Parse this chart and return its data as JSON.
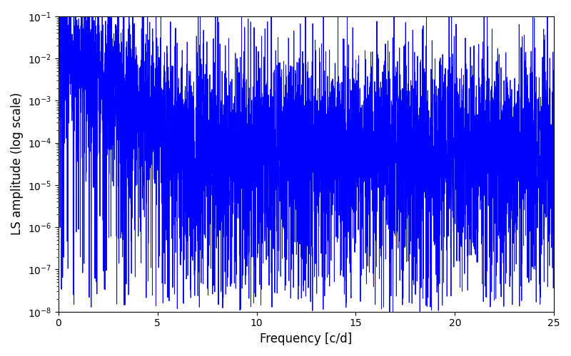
{
  "title": "",
  "xlabel": "Frequency [c/d]",
  "ylabel": "LS amplitude (log scale)",
  "xlim": [
    0,
    25
  ],
  "ylim": [
    1e-08,
    0.1
  ],
  "line_color": "#0000ff",
  "line_width": 0.7,
  "background_color": "#ffffff",
  "freq_min": 0.0,
  "freq_max": 25.0,
  "n_points": 5000,
  "seed": 7,
  "figsize": [
    8.0,
    5.0
  ],
  "dpi": 100
}
